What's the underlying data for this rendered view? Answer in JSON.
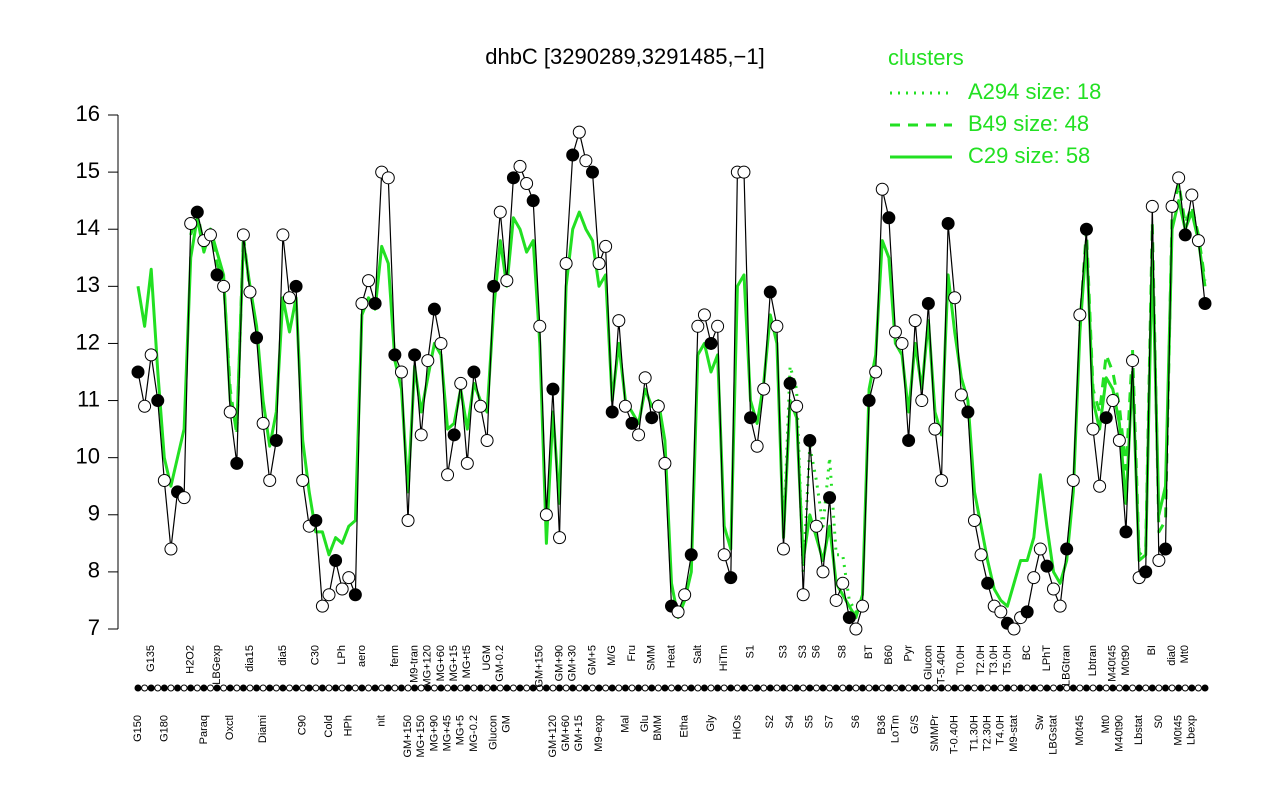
{
  "chart_data": {
    "type": "line",
    "title": "dhbC [3290289,3291485,−1]",
    "legend_title": "clusters",
    "categories": [
      "G150",
      null,
      "G135",
      null,
      "G180",
      null,
      null,
      null,
      "H2O2",
      null,
      "Paraq",
      null,
      "LBGexp",
      null,
      "Oxctl",
      null,
      null,
      "dia15",
      null,
      "Diami",
      null,
      null,
      "dia5",
      null,
      null,
      "C90",
      null,
      "C30",
      null,
      "Cold",
      null,
      "LPh",
      "HPh",
      null,
      "aero",
      null,
      null,
      "nit",
      null,
      "ferm",
      null,
      "GM+150",
      "M9-tran",
      "MG+150",
      "MG+120",
      "MG+90",
      "MG+60",
      "MG+45",
      "MG+15",
      "MG+5",
      "MG+t5",
      "MG-0.2",
      null,
      "UGM",
      "Glucon",
      "GM-0.2",
      "GM",
      null,
      null,
      null,
      null,
      "GM+150",
      null,
      "GM+120",
      "GM+90",
      "GM+60",
      "GM+30",
      "GM+15",
      null,
      "GM+5",
      "M9-exp",
      null,
      "M/G",
      null,
      "Mal",
      "Fru",
      null,
      "Glu",
      "SMM",
      "BMM",
      null,
      "Heat",
      null,
      "Etha",
      null,
      "Salt",
      null,
      "Gly",
      null,
      "HiTm",
      null,
      "HiOs",
      null,
      "S1",
      null,
      null,
      "S2",
      null,
      "S3",
      "S4",
      null,
      "S3",
      "S5",
      "S6",
      null,
      "S7",
      null,
      "S8",
      null,
      "S6",
      null,
      "BT",
      null,
      "B36",
      "B60",
      "LoTm",
      null,
      "Pyr",
      "G/S",
      null,
      "Glucon",
      "SMMPr",
      "T-5.40H",
      null,
      "T-0.40H",
      "T0.0H",
      null,
      "T1.30H",
      "T2.0H",
      "T2.30H",
      "T3.0H",
      "T4.0H",
      "T5.0H",
      "M9-stat",
      null,
      "BC",
      null,
      "Sw",
      "LPhT",
      "LBGstat",
      null,
      "LBGtran",
      null,
      "M0t45",
      null,
      "Lbtran",
      null,
      "Mt0",
      "M40t45",
      "M40t90",
      "M0t90",
      null,
      "Lbstat",
      null,
      "BI",
      "S0",
      null,
      "dia0",
      "M0t45",
      "Mt0",
      "Lbexp",
      null,
      null
    ],
    "ylim": [
      7,
      16
    ],
    "yticks": [
      7,
      8,
      9,
      10,
      11,
      12,
      13,
      14,
      15,
      16
    ],
    "series": [
      {
        "name": "A294 size: 18",
        "color": "#22e022",
        "dash": "dotted",
        "values": [
          null,
          null,
          null,
          null,
          null,
          null,
          null,
          null,
          null,
          null,
          null,
          null,
          null,
          null,
          null,
          null,
          null,
          null,
          null,
          null,
          null,
          null,
          null,
          null,
          null,
          null,
          null,
          null,
          null,
          null,
          null,
          null,
          null,
          null,
          null,
          null,
          null,
          null,
          null,
          null,
          null,
          null,
          null,
          null,
          null,
          null,
          null,
          null,
          null,
          null,
          null,
          null,
          null,
          null,
          null,
          null,
          null,
          null,
          null,
          null,
          null,
          null,
          null,
          null,
          null,
          null,
          null,
          null,
          null,
          null,
          null,
          null,
          null,
          null,
          null,
          null,
          null,
          null,
          null,
          null,
          null,
          null,
          null,
          null,
          null,
          null,
          null,
          null,
          null,
          null,
          null,
          null,
          null,
          null,
          null,
          null,
          null,
          null,
          8.6,
          11.6,
          11.2,
          8.0,
          10.2,
          9.6,
          8.8,
          10.0,
          8.3,
          8.3,
          7.5,
          7.3,
          7.5,
          null,
          null,
          null,
          null,
          null,
          null,
          null,
          null,
          null,
          null,
          null,
          null,
          null,
          null,
          null,
          null,
          null,
          null,
          null,
          null,
          null,
          null,
          null,
          null,
          null,
          null,
          null,
          null,
          null,
          null,
          null,
          null,
          null,
          null,
          null,
          null,
          null,
          null,
          null,
          null,
          null,
          null,
          null,
          null,
          null,
          null,
          null,
          null,
          null,
          null,
          null,
          null
        ]
      },
      {
        "name": "B49 size: 48",
        "color": "#22e022",
        "dash": "dashed",
        "values": [
          null,
          null,
          null,
          null,
          null,
          null,
          null,
          null,
          13.9,
          14.3,
          13.7,
          14.0,
          13.4,
          13.1,
          11.2,
          10.4,
          13.9,
          12.9,
          null,
          null,
          null,
          null,
          null,
          null,
          null,
          null,
          null,
          null,
          null,
          null,
          null,
          null,
          null,
          null,
          null,
          null,
          null,
          null,
          null,
          null,
          null,
          null,
          null,
          null,
          null,
          null,
          null,
          null,
          null,
          null,
          null,
          null,
          null,
          null,
          null,
          null,
          null,
          null,
          null,
          null,
          null,
          null,
          null,
          null,
          null,
          null,
          null,
          null,
          null,
          null,
          null,
          null,
          null,
          null,
          null,
          null,
          null,
          null,
          null,
          null,
          null,
          null,
          null,
          null,
          null,
          null,
          null,
          null,
          null,
          null,
          null,
          null,
          null,
          null,
          null,
          null,
          null,
          null,
          null,
          null,
          null,
          null,
          null,
          null,
          null,
          null,
          null,
          null,
          null,
          null,
          null,
          null,
          null,
          null,
          null,
          null,
          null,
          null,
          null,
          null,
          null,
          null,
          null,
          null,
          null,
          null,
          null,
          null,
          null,
          null,
          null,
          null,
          null,
          null,
          null,
          null,
          null,
          null,
          null,
          null,
          null,
          null,
          null,
          12.3,
          14.0,
          11.2,
          10.8,
          11.8,
          11.5,
          10.9,
          9.8,
          11.9,
          8.3,
          8.4,
          14.1,
          8.7,
          8.9,
          14.3,
          14.8,
          14.1,
          14.4,
          13.9,
          13.1
        ]
      },
      {
        "name": "C29 size: 58",
        "color": "#22e022",
        "dash": "solid",
        "values": [
          13.0,
          12.3,
          13.3,
          11.5,
          10.0,
          9.5,
          10.0,
          10.5,
          13.5,
          14.2,
          13.6,
          14.0,
          13.6,
          13.2,
          11.0,
          10.5,
          13.8,
          13.0,
          12.3,
          11.0,
          10.2,
          10.8,
          12.8,
          12.2,
          12.8,
          10.3,
          9.4,
          8.7,
          8.7,
          8.3,
          8.6,
          8.5,
          8.8,
          8.9,
          12.5,
          12.8,
          12.6,
          13.7,
          13.4,
          11.7,
          11.2,
          9.4,
          11.6,
          10.8,
          11.4,
          12.0,
          11.8,
          10.5,
          10.6,
          11.2,
          10.5,
          11.3,
          11.0,
          10.8,
          12.6,
          13.8,
          13.0,
          14.2,
          14.0,
          13.6,
          13.8,
          12.0,
          8.5,
          10.8,
          9.2,
          13.0,
          14.0,
          14.3,
          14.0,
          13.8,
          13.0,
          13.2,
          11.0,
          12.0,
          11.0,
          10.8,
          10.6,
          11.2,
          10.9,
          11.0,
          10.3,
          7.8,
          7.2,
          7.5,
          8.0,
          11.8,
          12.0,
          11.5,
          11.8,
          8.8,
          8.4,
          13.0,
          13.2,
          11.0,
          10.6,
          11.3,
          12.5,
          12.0,
          8.6,
          11.0,
          10.7,
          8.2,
          9.0,
          8.6,
          8.2,
          8.8,
          7.8,
          7.6,
          7.4,
          7.2,
          7.6,
          11.2,
          11.8,
          13.8,
          13.5,
          12.0,
          11.8,
          10.8,
          12.0,
          11.2,
          12.4,
          10.8,
          10.4,
          13.2,
          12.2,
          11.4,
          11.0,
          9.4,
          8.8,
          8.2,
          7.7,
          7.5,
          7.4,
          7.8,
          8.2,
          8.2,
          8.6,
          9.7,
          8.8,
          8.0,
          7.8,
          8.2,
          9.4,
          12.2,
          13.8,
          11.0,
          10.5,
          11.4,
          11.2,
          10.6,
          9.2,
          11.5,
          8.2,
          8.3,
          13.6,
          9.0,
          9.5,
          14.0,
          14.5,
          14.0,
          14.3,
          13.8,
          13.0
        ]
      },
      {
        "color": "#000000",
        "dash": "solid",
        "points": true,
        "values": [
          11.5,
          10.9,
          11.8,
          11.0,
          9.6,
          8.4,
          9.4,
          9.3,
          14.1,
          14.3,
          13.8,
          13.9,
          13.2,
          13.0,
          10.8,
          9.9,
          13.9,
          12.9,
          12.1,
          10.6,
          9.6,
          10.3,
          13.9,
          12.8,
          13.0,
          9.6,
          8.8,
          8.9,
          7.4,
          7.6,
          8.2,
          7.7,
          7.9,
          7.6,
          12.7,
          13.1,
          12.7,
          15.0,
          14.9,
          11.8,
          11.5,
          8.9,
          11.8,
          10.4,
          11.7,
          12.6,
          12.0,
          9.7,
          10.4,
          11.3,
          9.9,
          11.5,
          10.9,
          10.3,
          13.0,
          14.3,
          13.1,
          14.9,
          15.1,
          14.8,
          14.5,
          12.3,
          9.0,
          11.2,
          8.6,
          13.4,
          15.3,
          15.7,
          15.2,
          15.0,
          13.4,
          13.7,
          10.8,
          12.4,
          10.9,
          10.6,
          10.4,
          11.4,
          10.7,
          10.9,
          9.9,
          7.4,
          7.3,
          7.6,
          8.3,
          12.3,
          12.5,
          12.0,
          12.3,
          8.3,
          7.9,
          15.0,
          15.0,
          10.7,
          10.2,
          11.2,
          12.9,
          12.3,
          8.4,
          11.3,
          10.9,
          7.6,
          10.3,
          8.8,
          8.0,
          9.3,
          7.5,
          7.8,
          7.2,
          7.0,
          7.4,
          11.0,
          11.5,
          14.7,
          14.2,
          12.2,
          12.0,
          10.3,
          12.4,
          11.0,
          12.7,
          10.5,
          9.6,
          14.1,
          12.8,
          11.1,
          10.8,
          8.9,
          8.3,
          7.8,
          7.4,
          7.3,
          7.1,
          7.0,
          7.2,
          7.3,
          7.9,
          8.4,
          8.1,
          7.7,
          7.4,
          8.4,
          9.6,
          12.5,
          14.0,
          10.5,
          9.5,
          10.7,
          11.0,
          10.3,
          8.7,
          11.7,
          7.9,
          8.0,
          14.4,
          8.2,
          8.4,
          14.4,
          14.9,
          13.9,
          14.6,
          13.8,
          12.7
        ]
      }
    ]
  }
}
